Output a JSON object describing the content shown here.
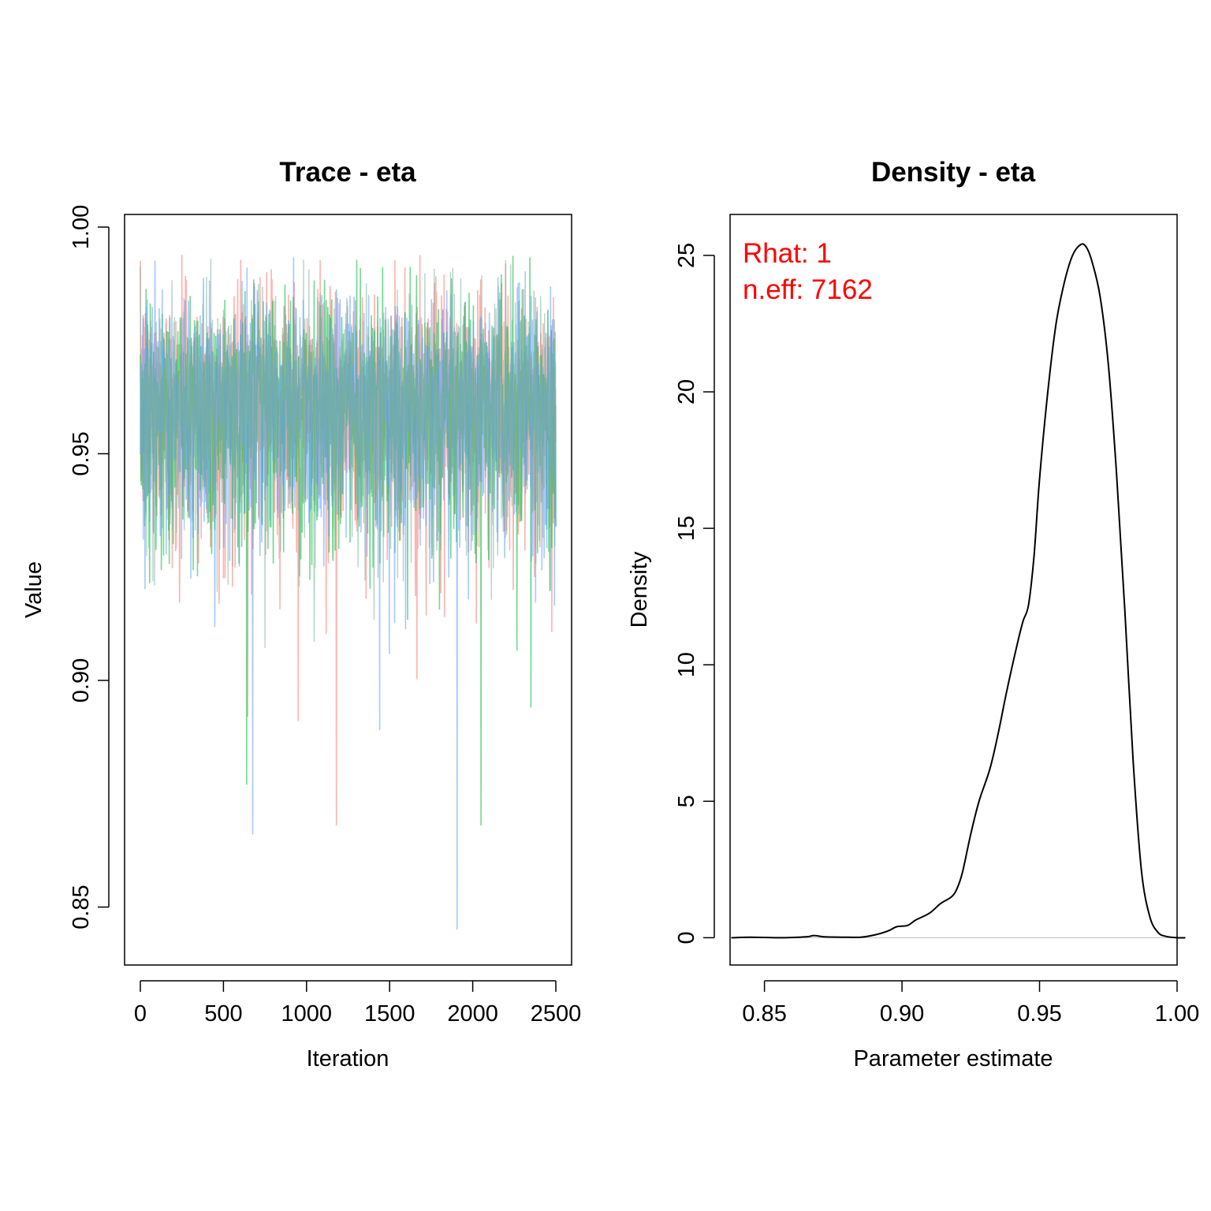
{
  "chart_data": [
    {
      "type": "line",
      "title": "Trace - eta",
      "xlabel": "Iteration",
      "ylabel": "Value",
      "xlim": [
        0,
        2500
      ],
      "ylim": [
        0.84,
        1.0
      ],
      "x_ticks": [
        0,
        500,
        1000,
        1500,
        2000,
        2500
      ],
      "x_tick_labels": [
        "0",
        "500",
        "1000",
        "1500",
        "2000",
        "2500"
      ],
      "y_ticks": [
        0.85,
        0.9,
        0.95,
        1.0
      ],
      "y_tick_labels": [
        "0.85",
        "0.90",
        "0.95",
        "1.00"
      ],
      "n_iterations": 2500,
      "series": [
        {
          "color": "#F8766D",
          "center": 0.962,
          "band": [
            0.93,
            0.985
          ],
          "min_spikes": [
            [
              1180,
              0.868
            ],
            [
              645,
              0.892
            ],
            [
              950,
              0.891
            ]
          ]
        },
        {
          "color": "#00BA38",
          "center": 0.962,
          "band": [
            0.93,
            0.985
          ],
          "min_spikes": [
            [
              2050,
              0.868
            ],
            [
              640,
              0.877
            ],
            [
              2350,
              0.894
            ]
          ]
        },
        {
          "color": "#619CFF",
          "center": 0.962,
          "band": [
            0.93,
            0.985
          ],
          "min_spikes": [
            [
              1905,
              0.845
            ],
            [
              675,
              0.866
            ],
            [
              1440,
              0.889
            ]
          ]
        },
        {
          "color": "#7CAE9E",
          "center": 0.962,
          "band": [
            0.935,
            0.982
          ],
          "min_spikes": []
        }
      ],
      "grid": false,
      "legend": "none"
    },
    {
      "type": "line",
      "title": "Density - eta",
      "xlabel": "Parameter estimate",
      "ylabel": "Density",
      "xlim": [
        0.8375,
        1.0
      ],
      "ylim": [
        -1.0,
        26.5
      ],
      "x_ticks": [
        0.85,
        0.9,
        0.95,
        1.0
      ],
      "x_tick_labels": [
        "0.85",
        "0.90",
        "0.95",
        "1.00"
      ],
      "y_ticks": [
        0,
        5,
        10,
        15,
        20,
        25
      ],
      "y_tick_labels": [
        "0",
        "5",
        "10",
        "15",
        "20",
        "25"
      ],
      "x": [
        0.838,
        0.845,
        0.855,
        0.865,
        0.868,
        0.872,
        0.878,
        0.885,
        0.89,
        0.895,
        0.898,
        0.902,
        0.905,
        0.91,
        0.914,
        0.918,
        0.92,
        0.922,
        0.925,
        0.928,
        0.932,
        0.935,
        0.938,
        0.942,
        0.944,
        0.946,
        0.948,
        0.95,
        0.953,
        0.956,
        0.959,
        0.962,
        0.965,
        0.967,
        0.969,
        0.972,
        0.975,
        0.978,
        0.981,
        0.984,
        0.987,
        0.99,
        0.993,
        0.996,
        1.0,
        1.003
      ],
      "y": [
        0.0,
        0.02,
        0.0,
        0.03,
        0.08,
        0.03,
        0.02,
        0.02,
        0.1,
        0.25,
        0.4,
        0.45,
        0.65,
        0.9,
        1.25,
        1.5,
        1.8,
        2.4,
        3.8,
        5.0,
        6.2,
        7.5,
        9.0,
        10.8,
        11.6,
        12.2,
        14.0,
        16.8,
        20.0,
        22.5,
        24.0,
        25.0,
        25.4,
        25.3,
        24.8,
        23.5,
        21.0,
        17.0,
        12.0,
        6.5,
        2.5,
        0.8,
        0.2,
        0.05,
        0.0,
        0.0
      ],
      "line_color": "#000000",
      "baseline": 0,
      "baseline_color": "#BEBEBE",
      "grid": false,
      "legend": "none"
    }
  ],
  "annotations": {
    "rhat": "Rhat: 1",
    "neff": "n.eff: 7162",
    "color": "#FF0000"
  }
}
